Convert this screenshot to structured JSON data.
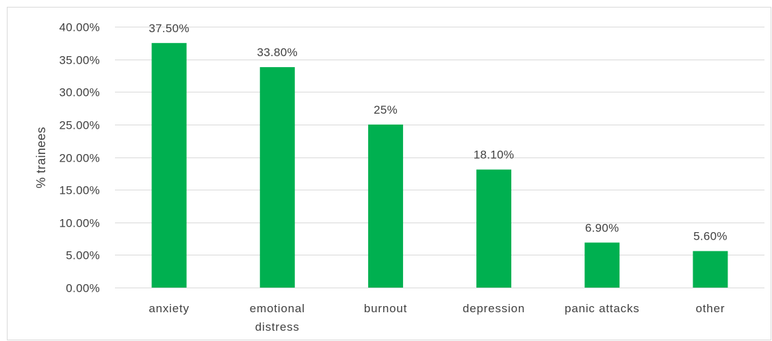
{
  "chart_data": {
    "type": "bar",
    "title": "",
    "xlabel": "",
    "ylabel": "% trainees",
    "categories": [
      [
        "anxiety"
      ],
      [
        "emotional",
        "distress"
      ],
      [
        "burnout"
      ],
      [
        "depression"
      ],
      [
        "panic attacks"
      ],
      [
        "other"
      ]
    ],
    "values": [
      37.5,
      33.8,
      25,
      18.1,
      6.9,
      5.6
    ],
    "data_labels": [
      "37.50%",
      "33.80%",
      "25%",
      "18.10%",
      "6.90%",
      "5.60%"
    ],
    "ylim": [
      0,
      40
    ],
    "yticks": [
      0,
      5,
      10,
      15,
      20,
      25,
      30,
      35,
      40
    ],
    "ytick_labels": [
      "0.00%",
      "5.00%",
      "10.00%",
      "15.00%",
      "20.00%",
      "25.00%",
      "30.00%",
      "35.00%",
      "40.00%"
    ],
    "grid": true,
    "legend": false,
    "bar_color": "#00b050",
    "grid_color": "#d9d9d9",
    "text_color": "#404040"
  }
}
